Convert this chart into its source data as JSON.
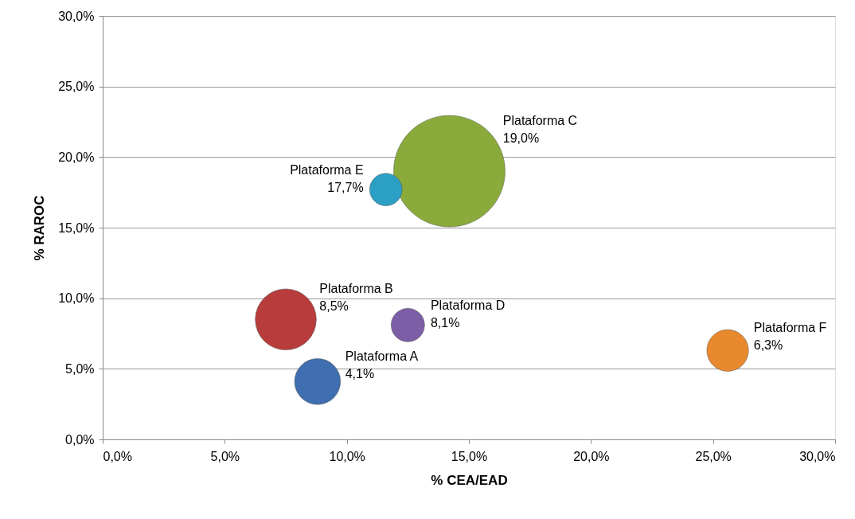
{
  "chart_data": {
    "type": "bubble",
    "xlabel": "% CEA/EAD",
    "ylabel": "% RAROC",
    "xlim": [
      0,
      30
    ],
    "ylim": [
      0,
      30
    ],
    "xticks": [
      {
        "value": 0,
        "label": "0,0%"
      },
      {
        "value": 5,
        "label": "5,0%"
      },
      {
        "value": 10,
        "label": "10,0%"
      },
      {
        "value": 15,
        "label": "15,0%"
      },
      {
        "value": 20,
        "label": "20,0%"
      },
      {
        "value": 25,
        "label": "25,0%"
      },
      {
        "value": 30,
        "label": "30,0%"
      }
    ],
    "yticks": [
      {
        "value": 0,
        "label": "0,0%"
      },
      {
        "value": 5,
        "label": "5,0%"
      },
      {
        "value": 10,
        "label": "10,0%"
      },
      {
        "value": 15,
        "label": "15,0%"
      },
      {
        "value": 20,
        "label": "20,0%"
      },
      {
        "value": 25,
        "label": "25,0%"
      },
      {
        "value": 30,
        "label": "30,0%"
      }
    ],
    "grid": "y",
    "series": [
      {
        "name": "Plataforma A",
        "color": "#3f6fb0",
        "x": [
          8.8
        ],
        "values": [
          4.1
        ],
        "sizes": [
          0.17
        ],
        "value_labels": [
          "4,1%"
        ]
      },
      {
        "name": "Plataforma B",
        "color": "#b83c3c",
        "x": [
          7.5
        ],
        "values": [
          8.5
        ],
        "sizes": [
          0.3
        ],
        "value_labels": [
          "8,5%"
        ]
      },
      {
        "name": "Plataforma C",
        "color": "#8aab3c",
        "x": [
          14.2
        ],
        "values": [
          19.0
        ],
        "sizes": [
          1
        ],
        "value_labels": [
          "19,0%"
        ]
      },
      {
        "name": "Plataforma D",
        "color": "#7b5ea6",
        "x": [
          12.5
        ],
        "values": [
          8.1
        ],
        "sizes": [
          0.09
        ],
        "value_labels": [
          "8,1%"
        ]
      },
      {
        "name": "Plataforma E",
        "color": "#2c9fc4",
        "x": [
          11.6
        ],
        "values": [
          17.7
        ],
        "sizes": [
          0.085
        ],
        "value_labels": [
          "17,7%"
        ]
      },
      {
        "name": "Plataforma F",
        "color": "#e8892e",
        "x": [
          25.6
        ],
        "values": [
          6.3
        ],
        "sizes": [
          0.14
        ],
        "value_labels": [
          "6,3%"
        ]
      }
    ]
  }
}
